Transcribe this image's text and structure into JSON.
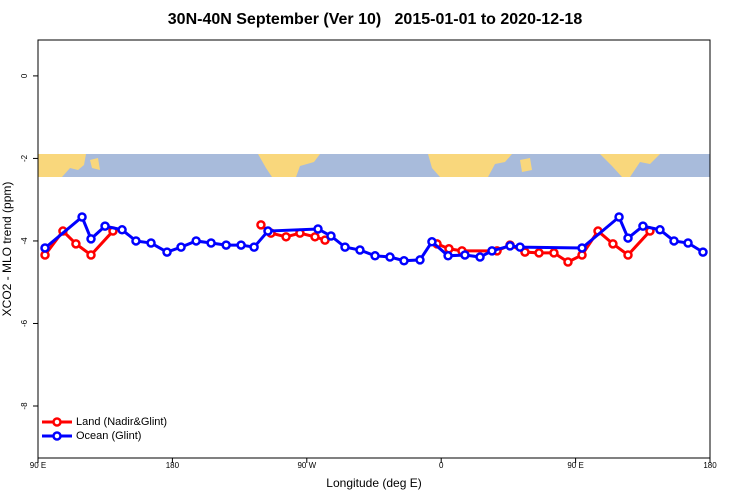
{
  "chart_data": {
    "type": "line",
    "title": "30N-40N September (Ver 10)   2015-01-01 to 2020-12-18",
    "x_label": "Longitude (deg E)",
    "y_label": "XCO2 - MLO trend (ppm)",
    "xlim": [
      90,
      540
    ],
    "xticks": [
      {
        "value": 90,
        "label": "90 E"
      },
      180,
      {
        "value": 270,
        "label": "90 W"
      },
      {
        "value": 360,
        "label": "0"
      },
      {
        "value": 450,
        "label": "90 E"
      },
      {
        "value": 540,
        "label": "180"
      }
    ],
    "ylim": [
      -9.26,
      0.87
    ],
    "yticks": [
      0,
      -2,
      -4,
      -6,
      -8
    ],
    "legend": "bottom-left",
    "series": [
      {
        "name": "Land (Nadir&Glint)",
        "color": "#ff0000",
        "x": [
          94.7,
          106.7,
          115.4,
          125.5,
          140.2,
          null,
          239.3,
          246.0,
          256.1,
          265.4,
          275.5,
          282.2,
          null,
          357.2,
          365.2,
          373.9,
          397.4,
          406.1,
          416.1,
          425.5,
          435.5,
          444.9,
          454.3,
          465.0,
          475.0,
          485.1,
          499.8
        ],
        "values": [
          -4.34,
          -3.76,
          -4.07,
          -4.34,
          -3.76,
          null,
          -3.61,
          -3.81,
          -3.9,
          -3.81,
          -3.9,
          -3.98,
          null,
          -4.07,
          -4.19,
          -4.24,
          -4.24,
          -4.1,
          -4.27,
          -4.29,
          -4.29,
          -4.51,
          -4.34,
          -3.76,
          -4.07,
          -4.34,
          -3.76
        ]
      },
      {
        "name": "Ocean (Glint)",
        "color": "#0000ff",
        "x": [
          94.7,
          119.5,
          125.5,
          134.9,
          146.3,
          155.6,
          165.7,
          176.4,
          185.8,
          195.9,
          205.9,
          216.0,
          226.0,
          234.7,
          244.0,
          277.5,
          286.2,
          295.6,
          305.6,
          315.7,
          325.7,
          335.1,
          345.8,
          353.8,
          364.6,
          375.9,
          386.0,
          394.0,
          406.1,
          412.8,
          454.3,
          479.1,
          485.1,
          495.1,
          506.5,
          515.9,
          525.3,
          535.3
        ],
        "values": [
          -4.17,
          -3.42,
          -3.95,
          -3.64,
          -3.73,
          -4.0,
          -4.05,
          -4.27,
          -4.15,
          -4.0,
          -4.05,
          -4.1,
          -4.1,
          -4.15,
          -3.76,
          -3.71,
          -3.88,
          -4.15,
          -4.22,
          -4.36,
          -4.39,
          -4.48,
          -4.46,
          -4.02,
          -4.36,
          -4.34,
          -4.39,
          -4.24,
          -4.12,
          -4.15,
          -4.17,
          -3.42,
          -3.93,
          -3.64,
          -3.73,
          -4.0,
          -4.05,
          -4.27
        ]
      }
    ]
  }
}
